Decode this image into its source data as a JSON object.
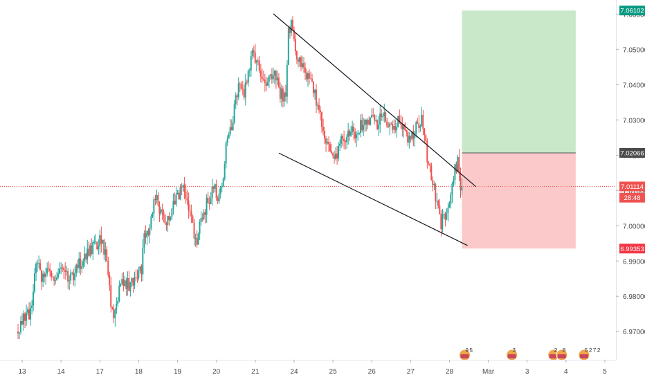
{
  "chart_data": {
    "type": "candlestick",
    "title": "",
    "xlabel": "",
    "ylabel": "",
    "ylim": [
      6.962,
      7.064
    ],
    "y_ticks": [
      6.97,
      6.98,
      6.99,
      7.0,
      7.01,
      7.02,
      7.03,
      7.04,
      7.05,
      7.06
    ],
    "y_tick_labels": [
      "6.97000",
      "6.98000",
      "6.99000",
      "7.00000",
      "7.01000",
      "7.02000",
      "7.03000",
      "7.04000",
      "7.05000",
      "7.06000"
    ],
    "x_ticks": [
      {
        "label": "13",
        "t": 1.5
      },
      {
        "label": "14",
        "t": 15.5
      },
      {
        "label": "17",
        "t": 29.5
      },
      {
        "label": "18",
        "t": 43.5
      },
      {
        "label": "19",
        "t": 57.5
      },
      {
        "label": "20",
        "t": 71.5
      },
      {
        "label": "21",
        "t": 85.5
      },
      {
        "label": "24",
        "t": 99.5
      },
      {
        "label": "25",
        "t": 113.5
      },
      {
        "label": "26",
        "t": 127.5
      },
      {
        "label": "27",
        "t": 141.5
      },
      {
        "label": "28",
        "t": 155.5
      },
      {
        "label": "Mar",
        "t": 169.5
      },
      {
        "label": "3",
        "t": 183.5
      },
      {
        "label": "4",
        "t": 197.5
      },
      {
        "label": "5",
        "t": 211.5
      }
    ],
    "x_range": [
      -6.5,
      215.5
    ],
    "anchors": [
      [
        0,
        6.97
      ],
      [
        2,
        6.973
      ],
      [
        5,
        6.975
      ],
      [
        7,
        6.989
      ],
      [
        9,
        6.986
      ],
      [
        11,
        6.988
      ],
      [
        13,
        6.985
      ],
      [
        15,
        6.987
      ],
      [
        17,
        6.989
      ],
      [
        19,
        6.985
      ],
      [
        22,
        6.988
      ],
      [
        24,
        6.991
      ],
      [
        27,
        6.993
      ],
      [
        30,
        6.996
      ],
      [
        32,
        6.992
      ],
      [
        34,
        6.978
      ],
      [
        35,
        6.975
      ],
      [
        37,
        6.982
      ],
      [
        39,
        6.984
      ],
      [
        41,
        6.983
      ],
      [
        43,
        6.984
      ],
      [
        45,
        6.988
      ],
      [
        46,
        6.996
      ],
      [
        48,
        7.0
      ],
      [
        50,
        7.008
      ],
      [
        52,
        7.004
      ],
      [
        54,
        7.002
      ],
      [
        56,
        7.005
      ],
      [
        58,
        7.008
      ],
      [
        60,
        7.01
      ],
      [
        62,
        7.006
      ],
      [
        64,
        6.998
      ],
      [
        65,
        6.996
      ],
      [
        67,
        7.003
      ],
      [
        69,
        7.007
      ],
      [
        71,
        7.011
      ],
      [
        73,
        7.008
      ],
      [
        74,
        7.011
      ],
      [
        76,
        7.025
      ],
      [
        78,
        7.03
      ],
      [
        80,
        7.04
      ],
      [
        82,
        7.038
      ],
      [
        84,
        7.045
      ],
      [
        85,
        7.048
      ],
      [
        87,
        7.045
      ],
      [
        89,
        7.04
      ],
      [
        91,
        7.042
      ],
      [
        93,
        7.044
      ],
      [
        95,
        7.038
      ],
      [
        97,
        7.036
      ],
      [
        98,
        7.055
      ],
      [
        99,
        7.057
      ],
      [
        100,
        7.052
      ],
      [
        102,
        7.046
      ],
      [
        104,
        7.043
      ],
      [
        106,
        7.04
      ],
      [
        108,
        7.036
      ],
      [
        110,
        7.029
      ],
      [
        112,
        7.024
      ],
      [
        113,
        7.02
      ],
      [
        114,
        7.018
      ],
      [
        116,
        7.022
      ],
      [
        118,
        7.025
      ],
      [
        120,
        7.027
      ],
      [
        122,
        7.026
      ],
      [
        124,
        7.029
      ],
      [
        126,
        7.028
      ],
      [
        128,
        7.031
      ],
      [
        130,
        7.028
      ],
      [
        132,
        7.032
      ],
      [
        134,
        7.029
      ],
      [
        136,
        7.027
      ],
      [
        138,
        7.03
      ],
      [
        140,
        7.026
      ],
      [
        142,
        7.025
      ],
      [
        144,
        7.028
      ],
      [
        146,
        7.03
      ],
      [
        148,
        7.02
      ],
      [
        150,
        7.012
      ],
      [
        152,
        7.005
      ],
      [
        153,
        7.0
      ],
      [
        154,
        7.003
      ],
      [
        156,
        7.006
      ],
      [
        158,
        7.016
      ],
      [
        159,
        7.018
      ],
      [
        160,
        7.011
      ]
    ],
    "trendlines": [
      {
        "name": "upper-channel-line",
        "from": [
          92,
          7.0601
        ],
        "to": [
          165,
          7.0111
        ]
      },
      {
        "name": "lower-channel-line",
        "from": [
          94,
          7.0206
        ],
        "to": [
          162,
          6.9944
        ]
      }
    ],
    "position_zones": [
      {
        "name": "target-zone",
        "kind": "profit",
        "t_range": [
          160,
          201
        ],
        "y_range": [
          7.02066,
          7.06102
        ],
        "color": "#c8e8c9"
      },
      {
        "name": "stop-zone",
        "kind": "loss",
        "t_range": [
          160,
          201
        ],
        "y_range": [
          6.99353,
          7.02066
        ],
        "color": "#fbc9c9"
      }
    ],
    "current_price_line": {
      "y": 7.01114,
      "color": "#ef5350"
    },
    "price_labels": [
      {
        "name": "target-price-label",
        "text": "7.06102",
        "y": 7.06102,
        "bg": "#089981"
      },
      {
        "name": "entry-price-label",
        "text": "7.02066",
        "y": 7.02066,
        "bg": "#4a4a4a"
      },
      {
        "name": "current-price-label",
        "text": "7.01114",
        "y": 7.01114,
        "bg": "#ef5350"
      },
      {
        "name": "countdown-label",
        "text": "28:48",
        "y": 7.00796,
        "bg": "#ef5350"
      },
      {
        "name": "stop-price-label",
        "text": "6.99353",
        "y": 6.99353,
        "bg": "#f23645"
      }
    ],
    "colors": {
      "up": "#26a69a",
      "down": "#ef5350",
      "axis_text": "#4a4a4a",
      "grid_border": "#e0e3eb"
    }
  },
  "events": [
    {
      "name": "event-flag-1",
      "t": 161,
      "badges": [
        "9",
        "5"
      ]
    },
    {
      "name": "event-flag-2",
      "t": 178,
      "badges": [
        "3"
      ]
    },
    {
      "name": "event-flag-3",
      "t": 193,
      "badges": [
        "2"
      ]
    },
    {
      "name": "event-flag-4",
      "t": 196,
      "badges": [
        "8"
      ]
    },
    {
      "name": "event-flag-5",
      "t": 204,
      "badges": [
        "5",
        "2",
        "7",
        "2"
      ]
    }
  ]
}
